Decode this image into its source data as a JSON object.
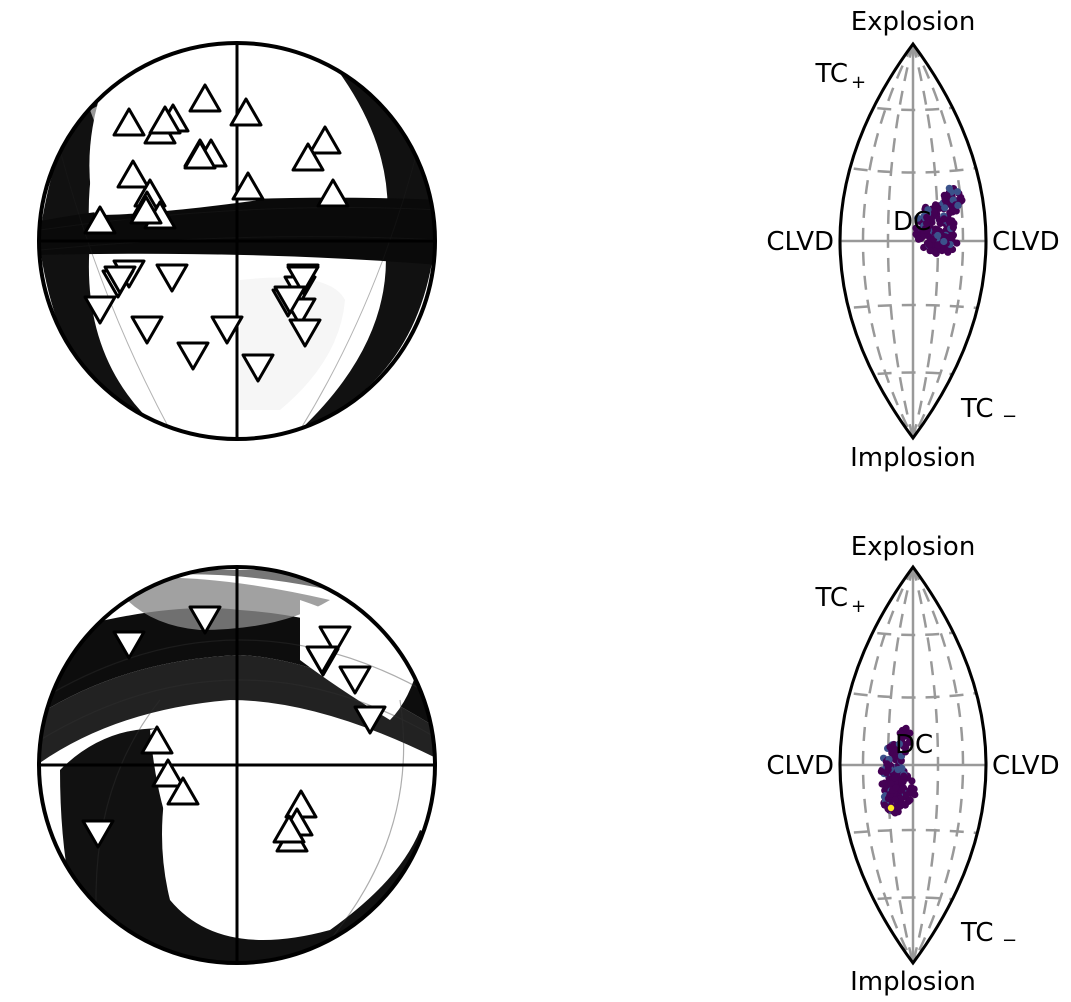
{
  "panels": [
    {
      "beachball": {
        "shading": "dark-nodal-bands",
        "compressional_symbol": "up-triangle",
        "dilatational_symbol": "down-triangle",
        "up_count": 19,
        "down_count": 16
      },
      "lune": {
        "labels": {
          "top": "Explosion",
          "bottom": "Implosion",
          "left": "CLVD",
          "right": "CLVD",
          "tc_plus": "TC",
          "tc_plus_sign": "+",
          "tc_minus": "TC",
          "tc_minus_sign": "−",
          "center": "DC"
        },
        "cluster_position": "right-of-center"
      }
    },
    {
      "beachball": {
        "shading": "grey-curved-bands",
        "compressional_symbol": "up-triangle",
        "dilatational_symbol": "down-triangle",
        "up_count": 7,
        "down_count": 8
      },
      "lune": {
        "labels": {
          "top": "Explosion",
          "bottom": "Implosion",
          "left": "CLVD",
          "right": "CLVD",
          "tc_plus": "TC",
          "tc_plus_sign": "+",
          "tc_minus": "TC",
          "tc_minus_sign": "−",
          "center": "DC"
        },
        "cluster_position": "left-of-center"
      }
    }
  ],
  "colors": {
    "outline": "#000000",
    "grid": "#999999",
    "cluster": "#440154",
    "cluster_accent": "#3b528b",
    "highlight": "#fde725"
  }
}
